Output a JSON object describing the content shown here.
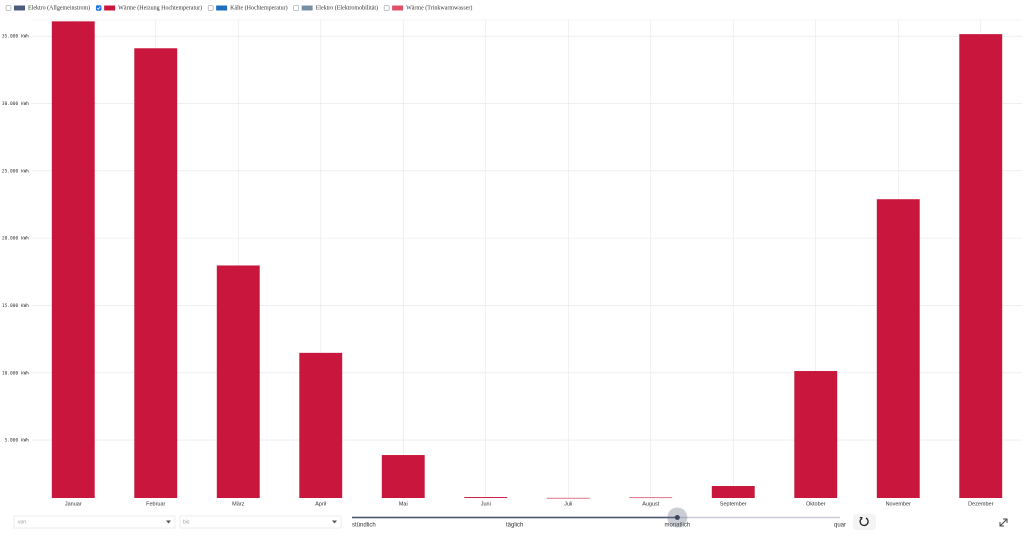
{
  "chart_data": {
    "type": "bar",
    "series": [
      {
        "name": "Elektro (Allgemeinstrom)",
        "color": "#4b5b7c",
        "visible": false
      },
      {
        "name": "Wärme (Heizung Hochtemperatur)",
        "color": "#c8163c",
        "visible": true,
        "values": [
          36100,
          34100,
          17970,
          11480,
          3890,
          770,
          710,
          740,
          1590,
          10130,
          22890,
          35150
        ]
      },
      {
        "name": "Kälte (Hochtemperatur)",
        "color": "#1f6fbf",
        "visible": false
      },
      {
        "name": "Elektro (Elektromobilität)",
        "color": "#7a8fa6",
        "visible": false
      },
      {
        "name": "Wärme (Trinkwarmwasser)",
        "color": "#e0506a",
        "visible": false
      }
    ],
    "categories": [
      "Januar",
      "Februar",
      "März",
      "April",
      "Mai",
      "Juni",
      "Juli",
      "August",
      "September",
      "Oktober",
      "November",
      "Dezember"
    ],
    "ylim": [
      700,
      36200
    ],
    "yticks": [
      {
        "value": 5000,
        "label": "5.000 kWh"
      },
      {
        "value": 10000,
        "label": "10.000 kWh"
      },
      {
        "value": 15000,
        "label": "15.000 kWh"
      },
      {
        "value": 20000,
        "label": "20.000 kWh"
      },
      {
        "value": 25000,
        "label": "25.000 kWh"
      },
      {
        "value": 30000,
        "label": "30.000 kWh"
      },
      {
        "value": 35000,
        "label": "35.000 kWh"
      }
    ],
    "grid": true
  },
  "controls": {
    "from_placeholder": "von",
    "to_placeholder": "bis",
    "resolution": {
      "options": [
        "stündlich",
        "täglich",
        "monatlich",
        "quar"
      ],
      "selected": 2
    }
  }
}
